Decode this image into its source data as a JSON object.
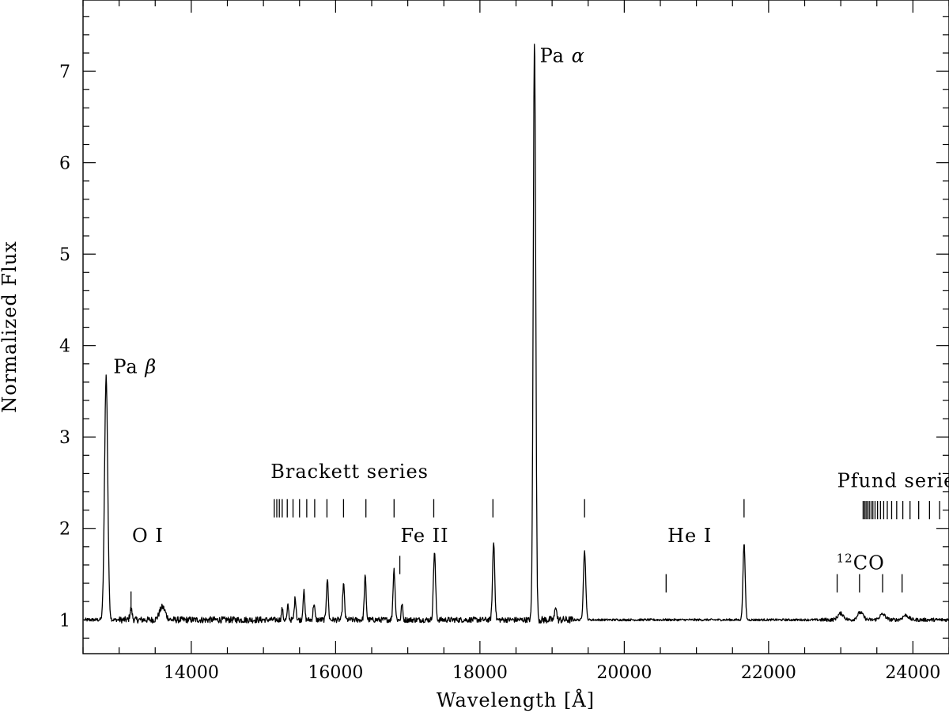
{
  "chart_data": {
    "type": "line",
    "title": "",
    "xlabel": "Wavelength [Å]",
    "ylabel": "Normalized Flux",
    "xlim": [
      12500,
      24500
    ],
    "ylim": [
      0.63,
      7.78
    ],
    "xticks": [
      14000,
      16000,
      18000,
      20000,
      22000,
      24000
    ],
    "xtick_labels": [
      "14000",
      "16000",
      "18000",
      "20000",
      "22000",
      "24000"
    ],
    "yticks": [
      1,
      2,
      3,
      4,
      5,
      6,
      7
    ],
    "ytick_labels": [
      "1",
      "2",
      "3",
      "4",
      "5",
      "6",
      "7"
    ],
    "grid": false,
    "baseline": 1.0,
    "emission_lines": [
      {
        "center": 12820,
        "peak": 3.67,
        "sigma": 22
      },
      {
        "center": 13165,
        "peak": 1.12,
        "sigma": 15
      },
      {
        "center": 13600,
        "peak": 1.14,
        "sigma": 40
      },
      {
        "center": 15260,
        "peak": 1.12,
        "sigma": 10
      },
      {
        "center": 15340,
        "peak": 1.16,
        "sigma": 10
      },
      {
        "center": 15440,
        "peak": 1.24,
        "sigma": 12
      },
      {
        "center": 15560,
        "peak": 1.31,
        "sigma": 12
      },
      {
        "center": 15700,
        "peak": 1.18,
        "sigma": 12
      },
      {
        "center": 15885,
        "peak": 1.45,
        "sigma": 13
      },
      {
        "center": 16110,
        "peak": 1.39,
        "sigma": 13
      },
      {
        "center": 16410,
        "peak": 1.47,
        "sigma": 13
      },
      {
        "center": 16810,
        "peak": 1.55,
        "sigma": 14
      },
      {
        "center": 16920,
        "peak": 1.18,
        "sigma": 10
      },
      {
        "center": 17370,
        "peak": 1.74,
        "sigma": 15
      },
      {
        "center": 18190,
        "peak": 1.85,
        "sigma": 15
      },
      {
        "center": 18756,
        "peak": 7.36,
        "sigma": 17
      },
      {
        "center": 19050,
        "peak": 1.16,
        "sigma": 12
      },
      {
        "center": 19450,
        "peak": 1.75,
        "sigma": 16
      },
      {
        "center": 21660,
        "peak": 1.84,
        "sigma": 15
      },
      {
        "center": 23000,
        "peak": 1.07,
        "sigma": 40
      },
      {
        "center": 23270,
        "peak": 1.08,
        "sigma": 40
      },
      {
        "center": 23580,
        "peak": 1.06,
        "sigma": 40
      },
      {
        "center": 23900,
        "peak": 1.05,
        "sigma": 40
      }
    ],
    "annotations": {
      "pa_beta": {
        "prefix": "Pa",
        "greek": "β",
        "x": 12920,
        "y": 3.7
      },
      "pa_alpha": {
        "prefix": "Pa",
        "greek": "α",
        "x": 18830,
        "y": 7.1
      },
      "o_i": {
        "text": "O I",
        "x": 13180,
        "y": 1.85
      },
      "fe_ii": {
        "text": "Fe II",
        "x": 16900,
        "y": 1.85
      },
      "he_i": {
        "text": "He I",
        "x": 20600,
        "y": 1.85
      },
      "co": {
        "sup": "12",
        "text": "CO",
        "x": 22940,
        "y": 1.55
      },
      "brackett": {
        "text": "Brackett series",
        "x": 15100,
        "y": 2.55
      },
      "pfund": {
        "text": "Pfund series",
        "x": 22950,
        "y": 2.45
      }
    },
    "markers": {
      "o_i": {
        "x": [
          13165
        ],
        "y0": 1.1,
        "y1": 1.31
      },
      "fe_ii": {
        "x": [
          16890
        ],
        "y0": 1.5,
        "y1": 1.7
      },
      "he_i": {
        "x": [
          20580
        ],
        "y0": 1.3,
        "y1": 1.5
      },
      "co": {
        "x": [
          22950,
          23260,
          23580,
          23850
        ],
        "y0": 1.3,
        "y1": 1.5
      },
      "brackett": {
        "x": [
          15150,
          15185,
          15220,
          15260,
          15330,
          15410,
          15500,
          15600,
          15710,
          15880,
          16110,
          16420,
          16810,
          17360,
          18180,
          19450,
          21660
        ],
        "y0": 2.12,
        "y1": 2.32
      },
      "pfund": {
        "x": [
          23310,
          23330,
          23350,
          23370,
          23395,
          23420,
          23445,
          23475,
          23510,
          23550,
          23595,
          23645,
          23705,
          23775,
          23860,
          23960,
          24080,
          24230,
          24370
        ],
        "y0": 2.1,
        "y1": 2.3
      }
    }
  }
}
